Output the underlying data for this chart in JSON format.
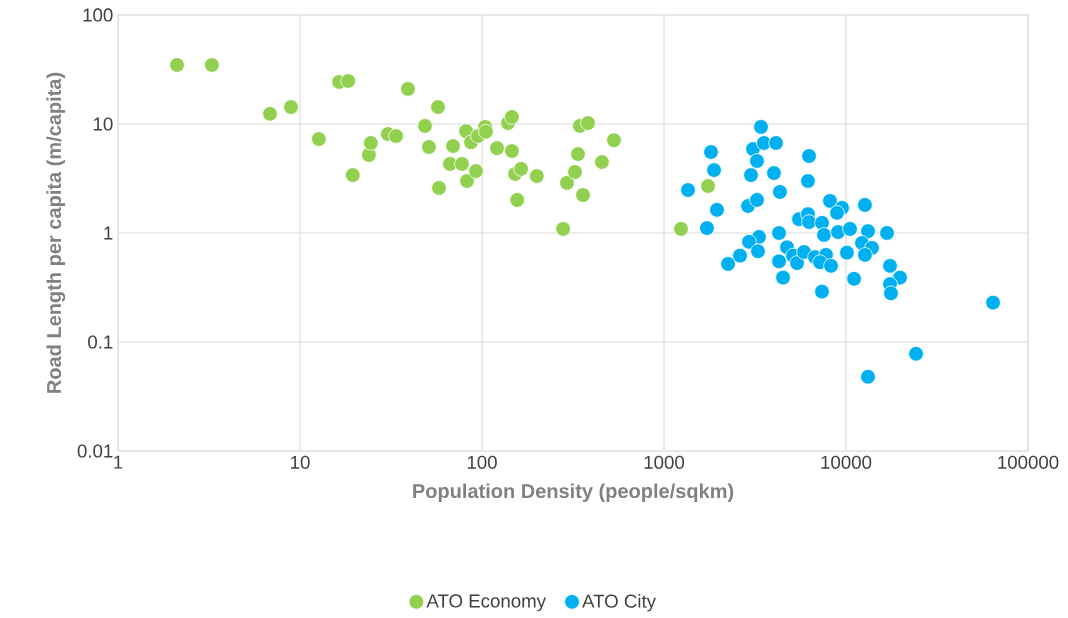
{
  "chart_data": {
    "type": "scatter",
    "xlabel": "Population Density (people/sqkm)",
    "ylabel": "Road Length per capita (m/capita)",
    "log": "xy",
    "grid": true,
    "legend": "bottom",
    "marker": "circle",
    "xlim": [
      1,
      100000
    ],
    "ylim": [
      0.01,
      100
    ],
    "xticks": [
      1,
      10,
      100,
      1000,
      10000,
      100000
    ],
    "yticks": [
      0.01,
      0.1,
      1,
      10,
      100
    ],
    "series": [
      {
        "name": "ATO Economy",
        "color": "#92d050",
        "x": [
          2.11,
          3.28,
          6.84,
          8.92,
          12.7,
          16.4,
          18.4,
          19.5,
          23.9,
          24.5,
          30.4,
          33.7,
          39.2,
          48.6,
          51.1,
          57.3,
          58.0,
          66.7,
          69.3,
          77.6,
          81.7,
          82.7,
          87.0,
          92.7,
          95.1,
          104,
          105,
          121,
          139,
          146,
          146,
          152,
          156,
          164,
          200,
          279,
          293,
          324,
          337,
          345,
          359,
          382,
          456,
          531,
          1240,
          1746
        ],
        "values": [
          34.8,
          34.8,
          12.4,
          14.3,
          7.28,
          24.3,
          24.8,
          3.4,
          5.2,
          6.7,
          8.1,
          7.76,
          21,
          9.6,
          6.15,
          14.3,
          2.59,
          4.3,
          6.28,
          4.3,
          8.6,
          3.0,
          6.8,
          3.7,
          7.76,
          9.4,
          8.5,
          6.0,
          10.2,
          11.6,
          5.65,
          3.48,
          2.01,
          3.87,
          3.33,
          1.09,
          2.88,
          3.63,
          5.3,
          9.6,
          2.23,
          10.2,
          4.48,
          7.1,
          1.09,
          2.7
        ]
      },
      {
        "name": "ATO City",
        "color": "#00b0f0",
        "x": [
          3412,
          1812,
          1883,
          1355,
          1955,
          1722,
          3083,
          3542,
          4125,
          3243,
          3006,
          4019,
          4337,
          6266,
          6180,
          2895,
          3243,
          8166,
          9506,
          8928,
          12710,
          5517,
          6180,
          6266,
          7380,
          7568,
          9040,
          10520,
          13210,
          16800,
          4285,
          3327,
          2931,
          3283,
          2616,
          2248,
          4285,
          4742,
          5117,
          5383,
          5879,
          6755,
          7762,
          7194,
          8270,
          10120,
          12240,
          13890,
          12710,
          4508,
          11070,
          7380,
          17450,
          19800,
          17450,
          17660,
          64270,
          24260,
          13210
        ],
        "values": [
          9.4,
          5.53,
          3.78,
          2.48,
          1.63,
          1.11,
          5.9,
          6.7,
          6.7,
          4.58,
          3.4,
          3.55,
          2.38,
          5.09,
          3.0,
          1.77,
          2.01,
          1.97,
          1.7,
          1.53,
          1.81,
          1.34,
          1.49,
          1.26,
          1.24,
          0.96,
          1.02,
          1.09,
          1.04,
          1.0,
          1.0,
          0.92,
          0.83,
          0.68,
          0.62,
          0.52,
          0.55,
          0.74,
          0.62,
          0.53,
          0.67,
          0.6,
          0.63,
          0.54,
          0.5,
          0.66,
          0.81,
          0.73,
          0.63,
          0.39,
          0.38,
          0.29,
          0.5,
          0.39,
          0.34,
          0.28,
          0.23,
          0.078,
          0.048
        ]
      }
    ]
  }
}
